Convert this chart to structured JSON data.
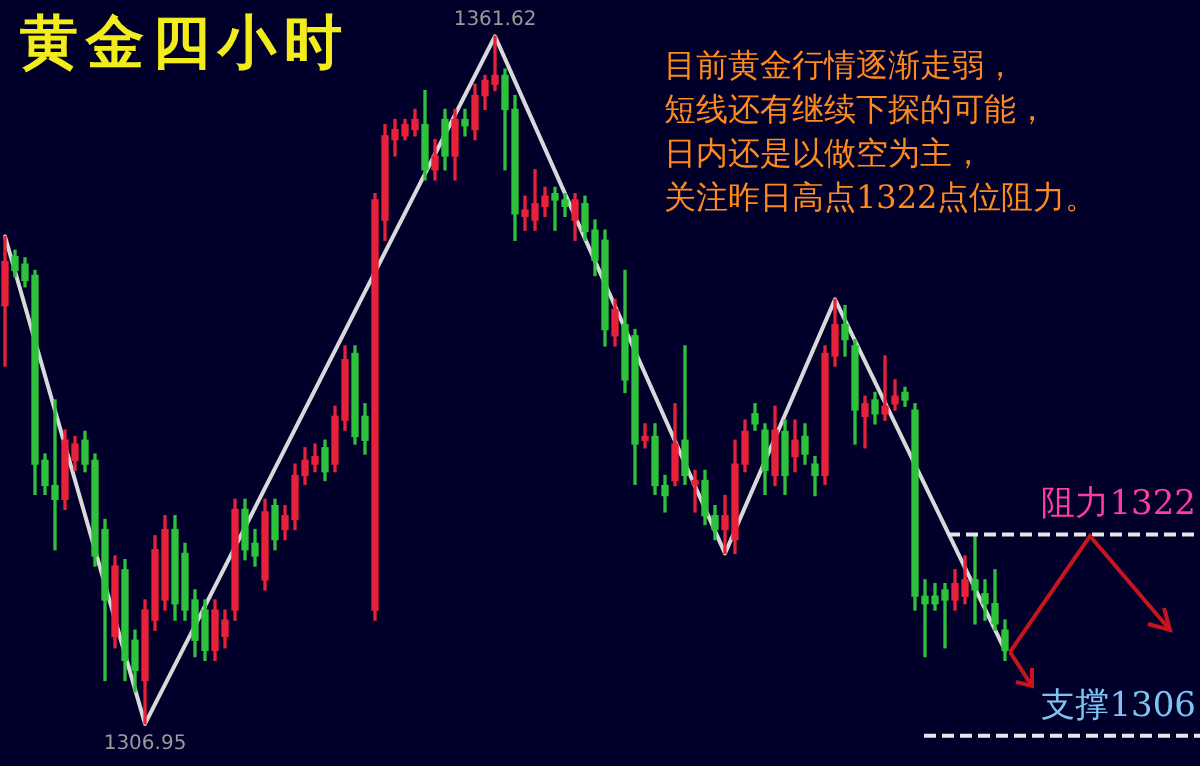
{
  "chart_data": {
    "type": "candlestick",
    "title": "黄金四小时",
    "annotations": [
      "目前黄金行情逐渐走弱，",
      "短线还有继续下探的可能，",
      "日内还是以做空为主，",
      "关注昨日高点1322点位阻力。",
      {
        "text": "1361.62",
        "y": 1361.62
      },
      {
        "text": "1306.95",
        "y": 1306.95
      }
    ],
    "categories": [
      null,
      null,
      null,
      null,
      null,
      null,
      null,
      null,
      null,
      null,
      null,
      null,
      null,
      null,
      null,
      null,
      null,
      null,
      null,
      null,
      null,
      null,
      null,
      null,
      null,
      null,
      null,
      null,
      null,
      null,
      null,
      null,
      null,
      null,
      null,
      null,
      null,
      null,
      null,
      null,
      null,
      null,
      null,
      null,
      null,
      null,
      null,
      null,
      null,
      null,
      null,
      null,
      null,
      null,
      null,
      null,
      null,
      null,
      null,
      null,
      null,
      null,
      null,
      null,
      null,
      null,
      null,
      null,
      null,
      null,
      null,
      null,
      null,
      null,
      null,
      null,
      null,
      null,
      null,
      null,
      null,
      null,
      null,
      null,
      null,
      null,
      null,
      null,
      null,
      null,
      null,
      null,
      null,
      null,
      null,
      null,
      null,
      null,
      null,
      null,
      null,
      null,
      null,
      null,
      null,
      null,
      null,
      null,
      null,
      null,
      null,
      null,
      null,
      null,
      null,
      null,
      null,
      null,
      null,
      null
    ],
    "ohlc": [
      [
        1340.2,
        1345.7,
        1335.4,
        1343.7
      ],
      [
        1344.1,
        1344.6,
        1342.5,
        1343.0
      ],
      [
        1343.5,
        1344.0,
        1341.7,
        1342.2
      ],
      [
        1342.6,
        1343.0,
        1325.2,
        1327.6
      ],
      [
        1327.9,
        1328.4,
        1325.2,
        1325.9
      ],
      [
        1325.9,
        1332.7,
        1320.8,
        1324.8
      ],
      [
        1324.8,
        1330.3,
        1324.0,
        1329.5
      ],
      [
        1327.9,
        1329.8,
        1327.1,
        1329.2
      ],
      [
        1329.5,
        1330.2,
        1327.0,
        1327.6
      ],
      [
        1327.9,
        1328.4,
        1319.5,
        1320.3
      ],
      [
        1322.4,
        1323.2,
        1310.4,
        1316.8
      ],
      [
        1313.9,
        1320.3,
        1313.0,
        1319.5
      ],
      [
        1319.2,
        1320.0,
        1310.4,
        1312.0
      ],
      [
        1313.6,
        1314.4,
        1309.5,
        1311.2
      ],
      [
        1310.4,
        1316.8,
        1306.95,
        1316.0
      ],
      [
        1315.2,
        1321.9,
        1314.4,
        1320.8
      ],
      [
        1316.8,
        1323.5,
        1316.0,
        1322.4
      ],
      [
        1322.4,
        1323.5,
        1315.2,
        1316.5
      ],
      [
        1320.5,
        1321.3,
        1315.2,
        1316.0
      ],
      [
        1316.8,
        1317.6,
        1312.3,
        1313.6
      ],
      [
        1316.0,
        1316.8,
        1312.0,
        1312.8
      ],
      [
        1312.8,
        1316.8,
        1312.0,
        1316.0
      ],
      [
        1313.9,
        1316.0,
        1313.0,
        1315.2
      ],
      [
        1316.0,
        1324.8,
        1315.2,
        1324.0
      ],
      [
        1324.0,
        1324.8,
        1320.0,
        1320.8
      ],
      [
        1321.3,
        1322.4,
        1319.5,
        1320.3
      ],
      [
        1318.4,
        1324.8,
        1317.6,
        1323.8
      ],
      [
        1324.3,
        1324.8,
        1320.8,
        1321.6
      ],
      [
        1322.4,
        1324.3,
        1321.6,
        1323.5
      ],
      [
        1323.2,
        1327.6,
        1322.4,
        1326.7
      ],
      [
        1326.7,
        1328.9,
        1326.0,
        1327.9
      ],
      [
        1327.6,
        1329.2,
        1327.0,
        1328.2
      ],
      [
        1328.9,
        1329.5,
        1326.3,
        1327.0
      ],
      [
        1327.6,
        1332.2,
        1327.0,
        1331.4
      ],
      [
        1331.1,
        1337.0,
        1330.3,
        1335.9
      ],
      [
        1336.4,
        1337.0,
        1329.2,
        1329.8
      ],
      [
        1331.4,
        1332.4,
        1328.4,
        1329.5
      ],
      [
        1316.0,
        1349.1,
        1315.2,
        1348.6
      ],
      [
        1347.0,
        1354.6,
        1345.4,
        1353.7
      ],
      [
        1353.4,
        1355.0,
        1352.1,
        1354.2
      ],
      [
        1353.7,
        1355.0,
        1353.4,
        1354.6
      ],
      [
        1354.2,
        1355.8,
        1353.7,
        1355.0
      ],
      [
        1354.6,
        1357.3,
        1350.2,
        1351.0
      ],
      [
        1351.0,
        1353.4,
        1350.2,
        1352.1
      ],
      [
        1355.0,
        1355.8,
        1351.0,
        1352.1
      ],
      [
        1352.1,
        1355.8,
        1350.2,
        1355.0
      ],
      [
        1355.0,
        1355.8,
        1353.7,
        1354.5
      ],
      [
        1354.2,
        1357.8,
        1353.4,
        1356.9
      ],
      [
        1356.9,
        1358.5,
        1355.8,
        1358.1
      ],
      [
        1357.8,
        1361.62,
        1357.3,
        1358.5
      ],
      [
        1358.5,
        1359.0,
        1351.0,
        1355.8
      ],
      [
        1355.8,
        1356.9,
        1345.4,
        1347.5
      ],
      [
        1347.3,
        1348.9,
        1346.2,
        1347.8
      ],
      [
        1347.0,
        1351.0,
        1346.2,
        1348.3
      ],
      [
        1348.1,
        1349.6,
        1347.3,
        1348.9
      ],
      [
        1349.1,
        1349.6,
        1346.2,
        1348.6
      ],
      [
        1348.6,
        1349.1,
        1347.3,
        1348.1
      ],
      [
        1347.0,
        1349.1,
        1345.4,
        1348.6
      ],
      [
        1348.3,
        1348.9,
        1345.4,
        1346.1
      ],
      [
        1346.2,
        1347.0,
        1342.6,
        1343.8
      ],
      [
        1345.4,
        1346.2,
        1337.0,
        1338.3
      ],
      [
        1337.8,
        1340.7,
        1337.0,
        1339.9
      ],
      [
        1338.7,
        1343.0,
        1333.3,
        1334.3
      ],
      [
        1337.8,
        1338.3,
        1326.0,
        1329.2
      ],
      [
        1329.5,
        1330.8,
        1328.9,
        1329.8
      ],
      [
        1329.8,
        1330.8,
        1325.2,
        1325.9
      ],
      [
        1325.9,
        1326.7,
        1323.8,
        1325.1
      ],
      [
        1326.3,
        1332.4,
        1325.9,
        1329.2
      ],
      [
        1329.5,
        1337.0,
        1326.0,
        1326.7
      ],
      [
        1326.0,
        1327.1,
        1323.8,
        1326.3
      ],
      [
        1326.3,
        1327.1,
        1322.8,
        1323.5
      ],
      [
        1323.5,
        1324.3,
        1321.6,
        1322.4
      ],
      [
        1322.4,
        1325.1,
        1320.5,
        1323.5
      ],
      [
        1321.6,
        1329.5,
        1320.5,
        1327.6
      ],
      [
        1327.6,
        1331.1,
        1327.0,
        1330.2
      ],
      [
        1331.6,
        1332.4,
        1330.3,
        1330.8
      ],
      [
        1330.3,
        1330.8,
        1325.2,
        1327.1
      ],
      [
        1326.7,
        1332.2,
        1325.9,
        1330.3
      ],
      [
        1330.2,
        1331.1,
        1325.2,
        1326.7
      ],
      [
        1328.2,
        1331.1,
        1327.0,
        1329.5
      ],
      [
        1329.8,
        1330.8,
        1327.6,
        1328.4
      ],
      [
        1327.6,
        1328.2,
        1325.1,
        1326.7
      ],
      [
        1326.7,
        1337.0,
        1326.0,
        1336.4
      ],
      [
        1336.2,
        1340.7,
        1335.4,
        1338.7
      ],
      [
        1338.7,
        1340.2,
        1336.2,
        1337.5
      ],
      [
        1337.0,
        1337.5,
        1329.2,
        1331.9
      ],
      [
        1331.4,
        1333.0,
        1328.9,
        1332.4
      ],
      [
        1332.7,
        1333.3,
        1330.8,
        1331.6
      ],
      [
        1331.6,
        1336.2,
        1331.1,
        1332.2
      ],
      [
        1332.4,
        1334.3,
        1331.9,
        1333.0
      ],
      [
        1333.3,
        1333.7,
        1332.2,
        1332.7
      ],
      [
        1331.9,
        1332.4,
        1316.0,
        1317.1
      ],
      [
        1317.1,
        1318.4,
        1312.3,
        1316.5
      ],
      [
        1317.1,
        1318.1,
        1316.0,
        1316.5
      ],
      [
        1317.6,
        1318.1,
        1313.0,
        1316.8
      ],
      [
        1316.8,
        1319.2,
        1316.0,
        1318.1
      ],
      [
        1317.1,
        1320.3,
        1316.5,
        1318.4
      ],
      [
        1318.4,
        1321.9,
        1314.9,
        1317.6
      ],
      [
        1317.3,
        1318.4,
        1315.2,
        1316.5
      ],
      [
        1316.5,
        1319.2,
        1314.4,
        1314.9
      ],
      [
        1314.4,
        1315.2,
        1312.0,
        1312.8
      ],
      null,
      null,
      null,
      null,
      null,
      null,
      null,
      null,
      null,
      null,
      null,
      null,
      null,
      null,
      null,
      null,
      null,
      null,
      null
    ],
    "series": [
      {
        "type": "line",
        "color": "#d9d9d9",
        "values": [
          1345.7,
          null,
          null,
          null,
          null,
          null,
          null,
          null,
          null,
          null,
          null,
          null,
          null,
          null,
          1306.95,
          null,
          null,
          null,
          null,
          null,
          null,
          null,
          null,
          null,
          null,
          null,
          null,
          null,
          null,
          null,
          null,
          null,
          null,
          null,
          null,
          null,
          null,
          null,
          null,
          null,
          null,
          null,
          null,
          null,
          null,
          null,
          null,
          null,
          null,
          1361.62,
          null,
          null,
          null,
          null,
          null,
          null,
          null,
          null,
          null,
          null,
          null,
          null,
          null,
          null,
          null,
          null,
          null,
          null,
          null,
          null,
          null,
          null,
          1320.5,
          null,
          null,
          null,
          null,
          null,
          null,
          null,
          null,
          null,
          null,
          1340.7,
          null,
          null,
          null,
          null,
          null,
          null,
          null,
          null,
          null,
          null,
          null,
          null,
          null,
          null,
          null,
          null,
          1312.8,
          null,
          null,
          null,
          null,
          null,
          null,
          null,
          null,
          null,
          null,
          null,
          null,
          null,
          null,
          null,
          null,
          null,
          null,
          null
        ]
      }
    ],
    "ylim": [
      1303.6,
      1364.5
    ],
    "tick_labels": false,
    "ref_lines": [
      {
        "axis": "y",
        "value": 1322,
        "label": "阻力1322",
        "color": "#e6e6e6",
        "line_style": "dashed"
      },
      {
        "axis": "y",
        "value": 1306,
        "label": "支撑1306",
        "color": "#e6e6e6",
        "line_style": "dashed"
      }
    ]
  }
}
